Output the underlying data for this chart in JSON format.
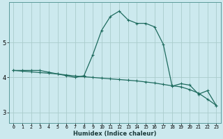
{
  "xlabel": "Humidex (Indice chaleur)",
  "background_color": "#cce9ee",
  "grid_color": "#aacccc",
  "line_color": "#1e6b5e",
  "xlim": [
    -0.5,
    23.5
  ],
  "ylim": [
    2.7,
    6.15
  ],
  "yticks": [
    3,
    4,
    5
  ],
  "xticks": [
    0,
    1,
    2,
    3,
    4,
    5,
    6,
    7,
    8,
    9,
    10,
    11,
    12,
    13,
    14,
    15,
    16,
    17,
    18,
    19,
    20,
    21,
    22,
    23
  ],
  "line1_x": [
    0,
    1,
    2,
    3,
    4,
    5,
    6,
    7,
    8,
    9,
    10,
    11,
    12,
    13,
    14,
    15,
    16,
    17,
    18,
    19,
    20,
    21,
    22,
    23
  ],
  "line1_y": [
    4.2,
    4.2,
    4.2,
    4.2,
    4.15,
    4.1,
    4.05,
    4.0,
    4.05,
    4.65,
    5.35,
    5.75,
    5.9,
    5.65,
    5.55,
    5.55,
    5.45,
    4.95,
    3.75,
    3.82,
    3.78,
    3.52,
    3.62,
    3.2
  ],
  "line2_x": [
    0,
    1,
    2,
    3,
    4,
    5,
    6,
    7,
    8,
    9,
    10,
    11,
    12,
    13,
    14,
    15,
    16,
    17,
    18,
    19,
    20,
    21,
    22,
    23
  ],
  "line2_y": [
    4.2,
    4.18,
    4.16,
    4.14,
    4.12,
    4.1,
    4.07,
    4.04,
    4.02,
    4.0,
    3.98,
    3.96,
    3.94,
    3.92,
    3.9,
    3.87,
    3.84,
    3.8,
    3.76,
    3.73,
    3.65,
    3.55,
    3.38,
    3.2
  ]
}
